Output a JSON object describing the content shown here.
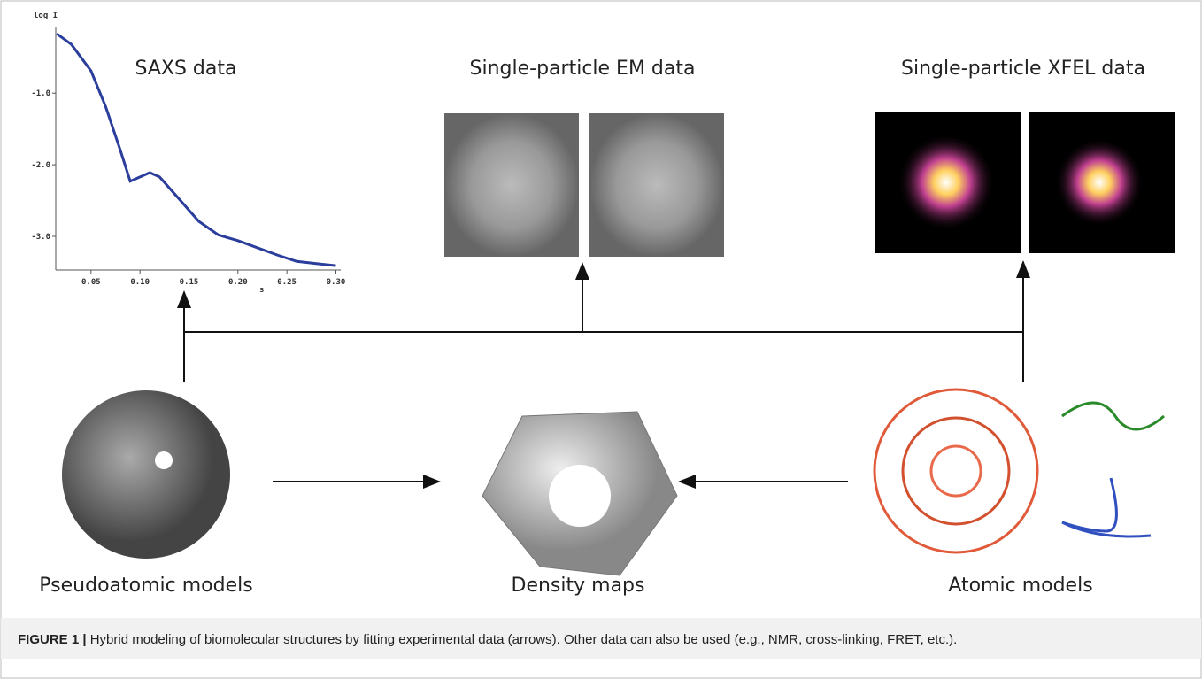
{
  "panels": {
    "saxs": "SAXS data",
    "em": "Single-particle EM data",
    "xfel": "Single-particle XFEL data",
    "pseudo": "Pseudoatomic models",
    "density": "Density maps",
    "atomic": "Atomic models"
  },
  "figure": {
    "label": "FIGURE 1 |",
    "caption": "Hybrid modeling of biomolecular structures by fitting experimental data (arrows). Other data can also be used (e.g., NMR, cross-linking, FRET, etc.)."
  },
  "chart_data": {
    "type": "line",
    "ylabel": "log I",
    "xlabel": "s",
    "xlim": [
      0.014,
      0.305
    ],
    "ylim": [
      -3.47,
      -0.07
    ],
    "xticks": [
      {
        "value": 0.05,
        "label": "0.05"
      },
      {
        "value": 0.1,
        "label": "0.10"
      },
      {
        "value": 0.15,
        "label": "0.15"
      },
      {
        "value": 0.2,
        "label": "0.20"
      },
      {
        "value": 0.25,
        "label": "0.25"
      },
      {
        "value": 0.3,
        "label": "0.30"
      }
    ],
    "yticks": [
      {
        "value": -1,
        "label": "-1.0"
      },
      {
        "value": -2,
        "label": "-2.0"
      },
      {
        "value": -3,
        "label": "-3.0"
      }
    ],
    "series": [
      {
        "color": "#2b3e9c",
        "x": [
          0.015,
          0.03,
          0.05,
          0.065,
          0.08,
          0.09,
          0.1,
          0.11,
          0.12,
          0.14,
          0.16,
          0.18,
          0.2,
          0.22,
          0.24,
          0.26,
          0.28,
          0.3
        ],
        "values": [
          -0.17,
          -0.32,
          -0.69,
          -1.19,
          -1.8,
          -2.23,
          -2.17,
          -2.11,
          -2.17,
          -2.48,
          -2.79,
          -2.98,
          -3.06,
          -3.16,
          -3.26,
          -3.35,
          -3.38,
          -3.41
        ]
      }
    ]
  }
}
